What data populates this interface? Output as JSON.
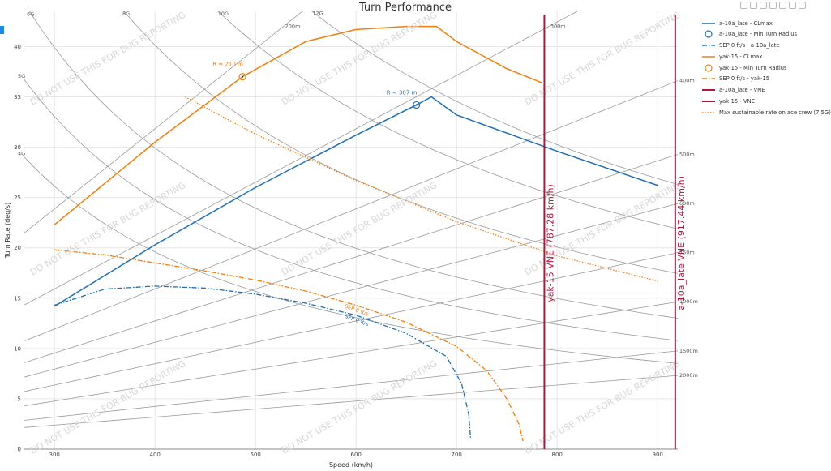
{
  "title": "Turn Performance",
  "watermark": "DO NOT USE THIS FOR BUG REPORTING",
  "colors": {
    "blue": "#1f6fb2",
    "orange": "#f07f0e",
    "red": "#b0163e",
    "grid": "#e6e6e6",
    "ref": "#9a9a9a"
  },
  "chart_data": {
    "type": "line",
    "title": "Turn Performance",
    "xlabel": "Speed (km/h)",
    "ylabel": "Turn Rate (deg/s)",
    "xlim": [
      270,
      920
    ],
    "ylim": [
      0,
      43.5
    ],
    "xticks": [
      300,
      400,
      500,
      600,
      700,
      800,
      900
    ],
    "yticks": [
      0,
      5,
      10,
      15,
      20,
      25,
      30,
      35,
      40
    ],
    "grid": true,
    "legend_position": "right",
    "g_lines": [
      {
        "label": "4G",
        "g": 4
      },
      {
        "label": "5G",
        "g": 5
      },
      {
        "label": "6G",
        "g": 6
      },
      {
        "label": "8G",
        "g": 8
      },
      {
        "label": "10G",
        "g": 10
      },
      {
        "label": "12G",
        "g": 12
      }
    ],
    "radius_lines": [
      {
        "label": "200m",
        "r": 200
      },
      {
        "label": "300m",
        "r": 300
      },
      {
        "label": "400m",
        "r": 400
      },
      {
        "label": "500m",
        "r": 500
      },
      {
        "label": "600m",
        "r": 600
      },
      {
        "label": "750m",
        "r": 750
      },
      {
        "label": "1000m",
        "r": 1000
      },
      {
        "label": "1500m",
        "r": 1500
      },
      {
        "label": "2000m",
        "r": 2000
      }
    ],
    "series": [
      {
        "name": "a-10a_late - CLmax",
        "style": "solid",
        "color": "#1f6fb2",
        "x": [
          300,
          400,
          500,
          600,
          660,
          675,
          700,
          800,
          900
        ],
        "y": [
          14.2,
          20.3,
          26.0,
          31.2,
          34.2,
          35.0,
          33.2,
          29.6,
          26.2
        ]
      },
      {
        "name": "a-10a_late - Min Turn Radius",
        "style": "marker",
        "color": "#1f6fb2",
        "x": [
          660
        ],
        "y": [
          34.2
        ],
        "label": "R = 307 m"
      },
      {
        "name": "SEP 0 ft/s - a-10a_late",
        "style": "dashdot",
        "color": "#1f6fb2",
        "x": [
          300,
          350,
          400,
          450,
          500,
          550,
          600,
          650,
          690,
          705,
          712,
          714
        ],
        "y": [
          14.3,
          15.9,
          16.2,
          16.0,
          15.4,
          14.5,
          13.3,
          11.5,
          9.2,
          6.5,
          3.5,
          1.0
        ],
        "label": "SEP 0 ft/s"
      },
      {
        "name": "yak-15 - CLmax",
        "style": "solid",
        "color": "#f07f0e",
        "x": [
          300,
          400,
          487,
          550,
          600,
          650,
          680,
          700,
          750,
          785
        ],
        "y": [
          22.3,
          30.5,
          37.0,
          40.5,
          41.7,
          42.0,
          42.0,
          40.5,
          37.8,
          36.4
        ]
      },
      {
        "name": "yak-15 - Min Turn Radius",
        "style": "marker",
        "color": "#f07f0e",
        "x": [
          487
        ],
        "y": [
          37.0
        ],
        "label": "R = 210 m"
      },
      {
        "name": "SEP 0 ft/s - yak-15",
        "style": "dashdot",
        "color": "#f07f0e",
        "x": [
          300,
          350,
          400,
          450,
          500,
          550,
          600,
          650,
          700,
          730,
          750,
          762,
          766
        ],
        "y": [
          19.8,
          19.3,
          18.5,
          17.7,
          16.8,
          15.7,
          14.3,
          12.6,
          10.2,
          7.8,
          5.0,
          2.5,
          0.8
        ],
        "label": "SEP 0 ft/s"
      },
      {
        "name": "a-10a_late - VNE",
        "style": "vline",
        "color": "#b0163e",
        "x": [
          917.44
        ],
        "label": "a-10a_late VNE (917.44 km/h)"
      },
      {
        "name": "yak-15 - VNE",
        "style": "vline",
        "color": "#b0163e",
        "x": [
          787.28
        ],
        "label": "yak-15 VNE (787.28 km/h)"
      },
      {
        "name": "Max sustainable rate on ace crew (7.5G)",
        "style": "dot",
        "color": "#f07f0e",
        "x": [
          430,
          500,
          600,
          700,
          800,
          900
        ],
        "y": [
          35.0,
          31.3,
          26.7,
          22.6,
          19.2,
          16.7
        ]
      }
    ]
  }
}
